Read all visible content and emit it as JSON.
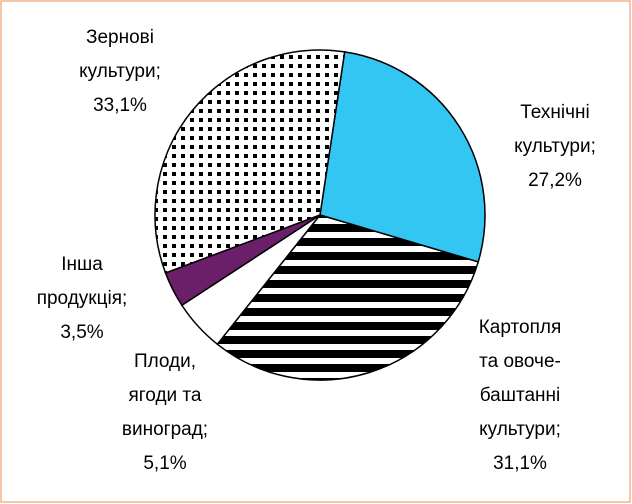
{
  "chart_data": {
    "type": "pie",
    "categories": [
      "Технічні культури;",
      "Картопля та овоче-баштанні культури;",
      "Плоди, ягоди та виноград;",
      "Інша продукція;",
      "Зернові культури;"
    ],
    "values": [
      27.2,
      31.1,
      5.1,
      3.5,
      33.1
    ],
    "value_labels": [
      "27,2%",
      "31,1%",
      "5,1%",
      "3,5%",
      "33,1%"
    ],
    "colors": [
      "#33c6f2",
      "#000000",
      "#ffffff",
      "#6b1f6b",
      "#000000"
    ],
    "patterns": [
      "solid",
      "horizontal-stripes",
      "solid",
      "solid",
      "checker-dots"
    ]
  }
}
